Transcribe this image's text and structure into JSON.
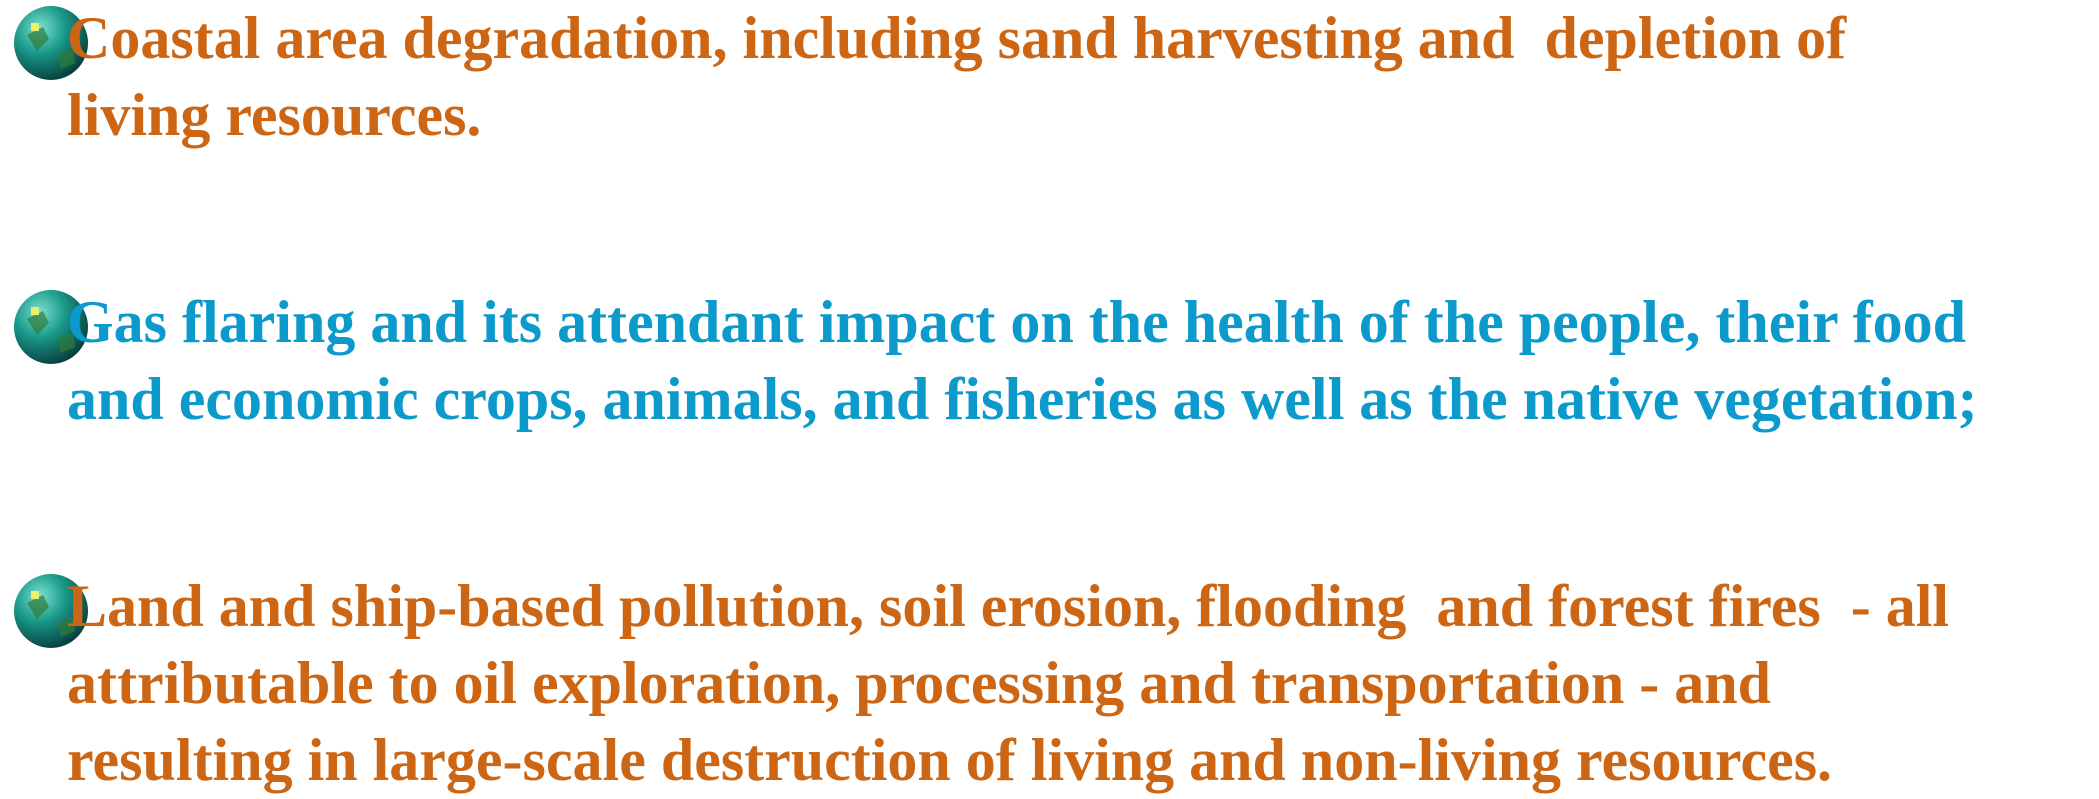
{
  "items": [
    {
      "color": "#cc6614",
      "lines": [
        "Coastal area degradation, including sand harvesting and  depletion of",
        "living resources."
      ]
    },
    {
      "color": "#0c99cc",
      "lines": [
        "Gas flaring and its attendant impact on the health of the people, their food",
        "and economic crops, animals, and fisheries as well as the native vegetation;"
      ]
    },
    {
      "color": "#cc6614",
      "lines": [
        "Land and ship-based pollution, soil erosion, flooding  and forest fires  - all",
        "attributable to oil exploration, processing and transportation - and",
        "resulting in large-scale destruction of living and non-living resources."
      ]
    }
  ]
}
